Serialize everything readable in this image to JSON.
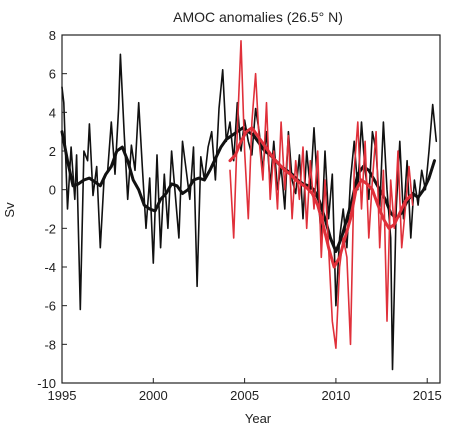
{
  "chart_data": {
    "type": "line",
    "title": "AMOC anomalies (26.5° N)",
    "xlabel": "Year",
    "ylabel": "Sv",
    "xlim": [
      1995,
      2015.7
    ],
    "ylim": [
      -10,
      8
    ],
    "xticks": [
      1995,
      2000,
      2005,
      2010,
      2015
    ],
    "yticks": [
      -10,
      -8,
      -6,
      -4,
      -2,
      0,
      2,
      4,
      6,
      8
    ],
    "grid": false,
    "series": [
      {
        "color": "#111111",
        "x": [
          1995.0,
          1995.1,
          1995.3,
          1995.5,
          1995.7,
          1995.8,
          1996.0,
          1996.2,
          1996.4,
          1996.5,
          1996.7,
          1996.9,
          1997.1,
          1997.3,
          1997.5,
          1997.7,
          1997.9,
          1998.1,
          1998.2,
          1998.4,
          1998.6,
          1998.8,
          1999.0,
          1999.2,
          1999.4,
          1999.6,
          1999.8,
          2000.0,
          2000.2,
          2000.4,
          2000.6,
          2000.8,
          2001.0,
          2001.2,
          2001.4,
          2001.6,
          2001.8,
          2002.0,
          2002.2,
          2002.4,
          2002.6,
          2002.8,
          2003.0,
          2003.2,
          2003.4,
          2003.6,
          2003.8,
          2004.0,
          2004.2,
          2004.4,
          2004.6,
          2004.8,
          2005.0,
          2005.2,
          2005.4,
          2005.6,
          2005.8,
          2006.0,
          2006.2,
          2006.4,
          2006.6,
          2006.8,
          2007.0,
          2007.2,
          2007.4,
          2007.6,
          2007.8,
          2008.0,
          2008.2,
          2008.4,
          2008.6,
          2008.8,
          2009.0,
          2009.2,
          2009.4,
          2009.6,
          2009.8,
          2010.0,
          2010.2,
          2010.4,
          2010.6,
          2010.8,
          2011.0,
          2011.2,
          2011.4,
          2011.6,
          2011.8,
          2012.0,
          2012.2,
          2012.4,
          2012.6,
          2012.8,
          2013.0,
          2013.1,
          2013.3,
          2013.5,
          2013.7,
          2013.9,
          2014.1,
          2014.3,
          2014.5,
          2014.7,
          2014.9,
          2015.1,
          2015.3,
          2015.5
        ],
        "values": [
          5.3,
          4.5,
          -1.0,
          2.2,
          -0.5,
          1.8,
          -6.2,
          2.0,
          1.5,
          3.4,
          -0.3,
          1.2,
          -3.0,
          0.5,
          1.0,
          3.5,
          0.8,
          4.2,
          7.0,
          3.0,
          -0.5,
          2.3,
          1.0,
          4.5,
          1.2,
          -2.0,
          0.6,
          -3.8,
          1.8,
          -3.0,
          0.8,
          -2.0,
          2.0,
          -0.2,
          -2.5,
          2.5,
          1.0,
          -0.5,
          2.2,
          -5.0,
          1.7,
          0.5,
          2.2,
          3.0,
          0.5,
          4.2,
          6.2,
          2.5,
          3.5,
          1.5,
          4.5,
          2.0,
          3.6,
          2.5,
          1.8,
          4.2,
          3.0,
          1.0,
          3.0,
          0.2,
          2.5,
          0.0,
          1.2,
          -1.0,
          3.0,
          0.5,
          -0.2,
          1.8,
          -1.5,
          2.0,
          0.0,
          3.2,
          0.0,
          -2.5,
          2.0,
          -1.5,
          0.8,
          -6.0,
          -2.5,
          -1.0,
          -3.0,
          0.5,
          2.5,
          0.0,
          3.5,
          1.0,
          -0.5,
          3.0,
          2.0,
          -1.0,
          3.5,
          0.0,
          -2.5,
          -9.3,
          -1.0,
          2.5,
          -1.5,
          1.5,
          -2.5,
          0.5,
          -0.8,
          1.0,
          0.0,
          2.0,
          4.4,
          2.5
        ]
      },
      {
        "color": "#111111",
        "x": [
          1995.0,
          1995.3,
          1995.6,
          1995.9,
          1996.2,
          1996.5,
          1996.8,
          1997.1,
          1997.4,
          1997.7,
          1998.0,
          1998.3,
          1998.6,
          1998.9,
          1999.2,
          1999.5,
          1999.8,
          2000.1,
          2000.4,
          2000.7,
          2001.0,
          2001.3,
          2001.6,
          2001.9,
          2002.2,
          2002.5,
          2002.8,
          2003.1,
          2003.4,
          2003.7,
          2004.0,
          2004.3,
          2004.6,
          2004.9,
          2005.2,
          2005.5,
          2005.8,
          2006.1,
          2006.4,
          2006.7,
          2007.0,
          2007.3,
          2007.6,
          2007.9,
          2008.2,
          2008.5,
          2008.8,
          2009.1,
          2009.4,
          2009.7,
          2010.0,
          2010.3,
          2010.6,
          2010.9,
          2011.2,
          2011.5,
          2011.8,
          2012.1,
          2012.4,
          2012.7,
          2013.0,
          2013.3,
          2013.6,
          2013.9,
          2014.2,
          2014.5,
          2014.8,
          2015.1,
          2015.4
        ],
        "values": [
          3.0,
          1.5,
          0.2,
          0.3,
          0.5,
          0.6,
          0.4,
          0.2,
          0.8,
          1.2,
          2.0,
          2.2,
          1.5,
          0.5,
          0.0,
          -0.8,
          -1.0,
          -1.1,
          -0.5,
          -0.2,
          0.3,
          0.2,
          -0.2,
          0.0,
          0.5,
          0.6,
          0.5,
          1.0,
          1.6,
          2.2,
          2.6,
          2.8,
          3.0,
          3.2,
          3.0,
          2.8,
          2.4,
          2.0,
          1.8,
          1.5,
          1.2,
          1.0,
          0.8,
          0.5,
          0.3,
          0.2,
          0.0,
          -0.6,
          -1.5,
          -2.5,
          -3.2,
          -2.5,
          -1.5,
          -0.5,
          0.8,
          1.2,
          1.0,
          0.5,
          0.0,
          -0.5,
          -1.2,
          -1.5,
          -1.2,
          -0.6,
          -0.2,
          -0.4,
          0.0,
          0.6,
          1.5
        ]
      },
      {
        "color": "#e0303a",
        "x": [
          2004.2,
          2004.4,
          2004.6,
          2004.8,
          2005.0,
          2005.2,
          2005.4,
          2005.6,
          2005.8,
          2006.0,
          2006.2,
          2006.4,
          2006.6,
          2006.8,
          2007.0,
          2007.2,
          2007.4,
          2007.6,
          2007.8,
          2008.0,
          2008.2,
          2008.4,
          2008.6,
          2008.8,
          2009.0,
          2009.2,
          2009.4,
          2009.6,
          2009.8,
          2010.0,
          2010.2,
          2010.4,
          2010.6,
          2010.8,
          2011.0,
          2011.2,
          2011.4,
          2011.6,
          2011.8,
          2012.0,
          2012.2,
          2012.4,
          2012.6,
          2012.8,
          2013.0,
          2013.2,
          2013.4,
          2013.6,
          2013.8,
          2014.0,
          2014.2
        ],
        "values": [
          1.0,
          -2.5,
          3.0,
          7.7,
          2.0,
          -1.5,
          3.5,
          6.0,
          2.5,
          0.5,
          4.5,
          -0.5,
          2.0,
          -1.0,
          3.5,
          0.0,
          2.8,
          -1.5,
          1.5,
          -0.5,
          2.2,
          -2.0,
          1.5,
          -1.0,
          2.0,
          -3.5,
          0.5,
          -3.0,
          -6.8,
          -8.2,
          -4.0,
          -2.5,
          -3.5,
          -8.0,
          1.0,
          3.5,
          -1.0,
          2.5,
          -2.5,
          0.5,
          3.0,
          -3.0,
          1.0,
          -6.8,
          0.5,
          -2.0,
          2.0,
          -3.0,
          -1.0,
          1.2,
          -0.8
        ]
      },
      {
        "color": "#e0303a",
        "x": [
          2004.2,
          2004.5,
          2004.8,
          2005.1,
          2005.4,
          2005.7,
          2006.0,
          2006.3,
          2006.6,
          2006.9,
          2007.2,
          2007.5,
          2007.8,
          2008.1,
          2008.4,
          2008.7,
          2009.0,
          2009.3,
          2009.6,
          2009.9,
          2010.2,
          2010.5,
          2010.8,
          2011.1,
          2011.4,
          2011.7,
          2012.0,
          2012.3,
          2012.6,
          2012.9,
          2013.2,
          2013.5,
          2013.8,
          2014.1
        ],
        "values": [
          1.5,
          1.8,
          2.5,
          3.0,
          3.2,
          2.8,
          2.4,
          2.0,
          1.6,
          1.3,
          1.0,
          0.8,
          0.5,
          0.3,
          0.1,
          -0.2,
          -0.8,
          -1.8,
          -3.0,
          -4.0,
          -3.5,
          -2.5,
          -1.5,
          0.0,
          0.5,
          0.3,
          0.0,
          -0.8,
          -1.5,
          -2.0,
          -1.8,
          -1.2,
          -0.6,
          -0.3
        ]
      }
    ]
  }
}
